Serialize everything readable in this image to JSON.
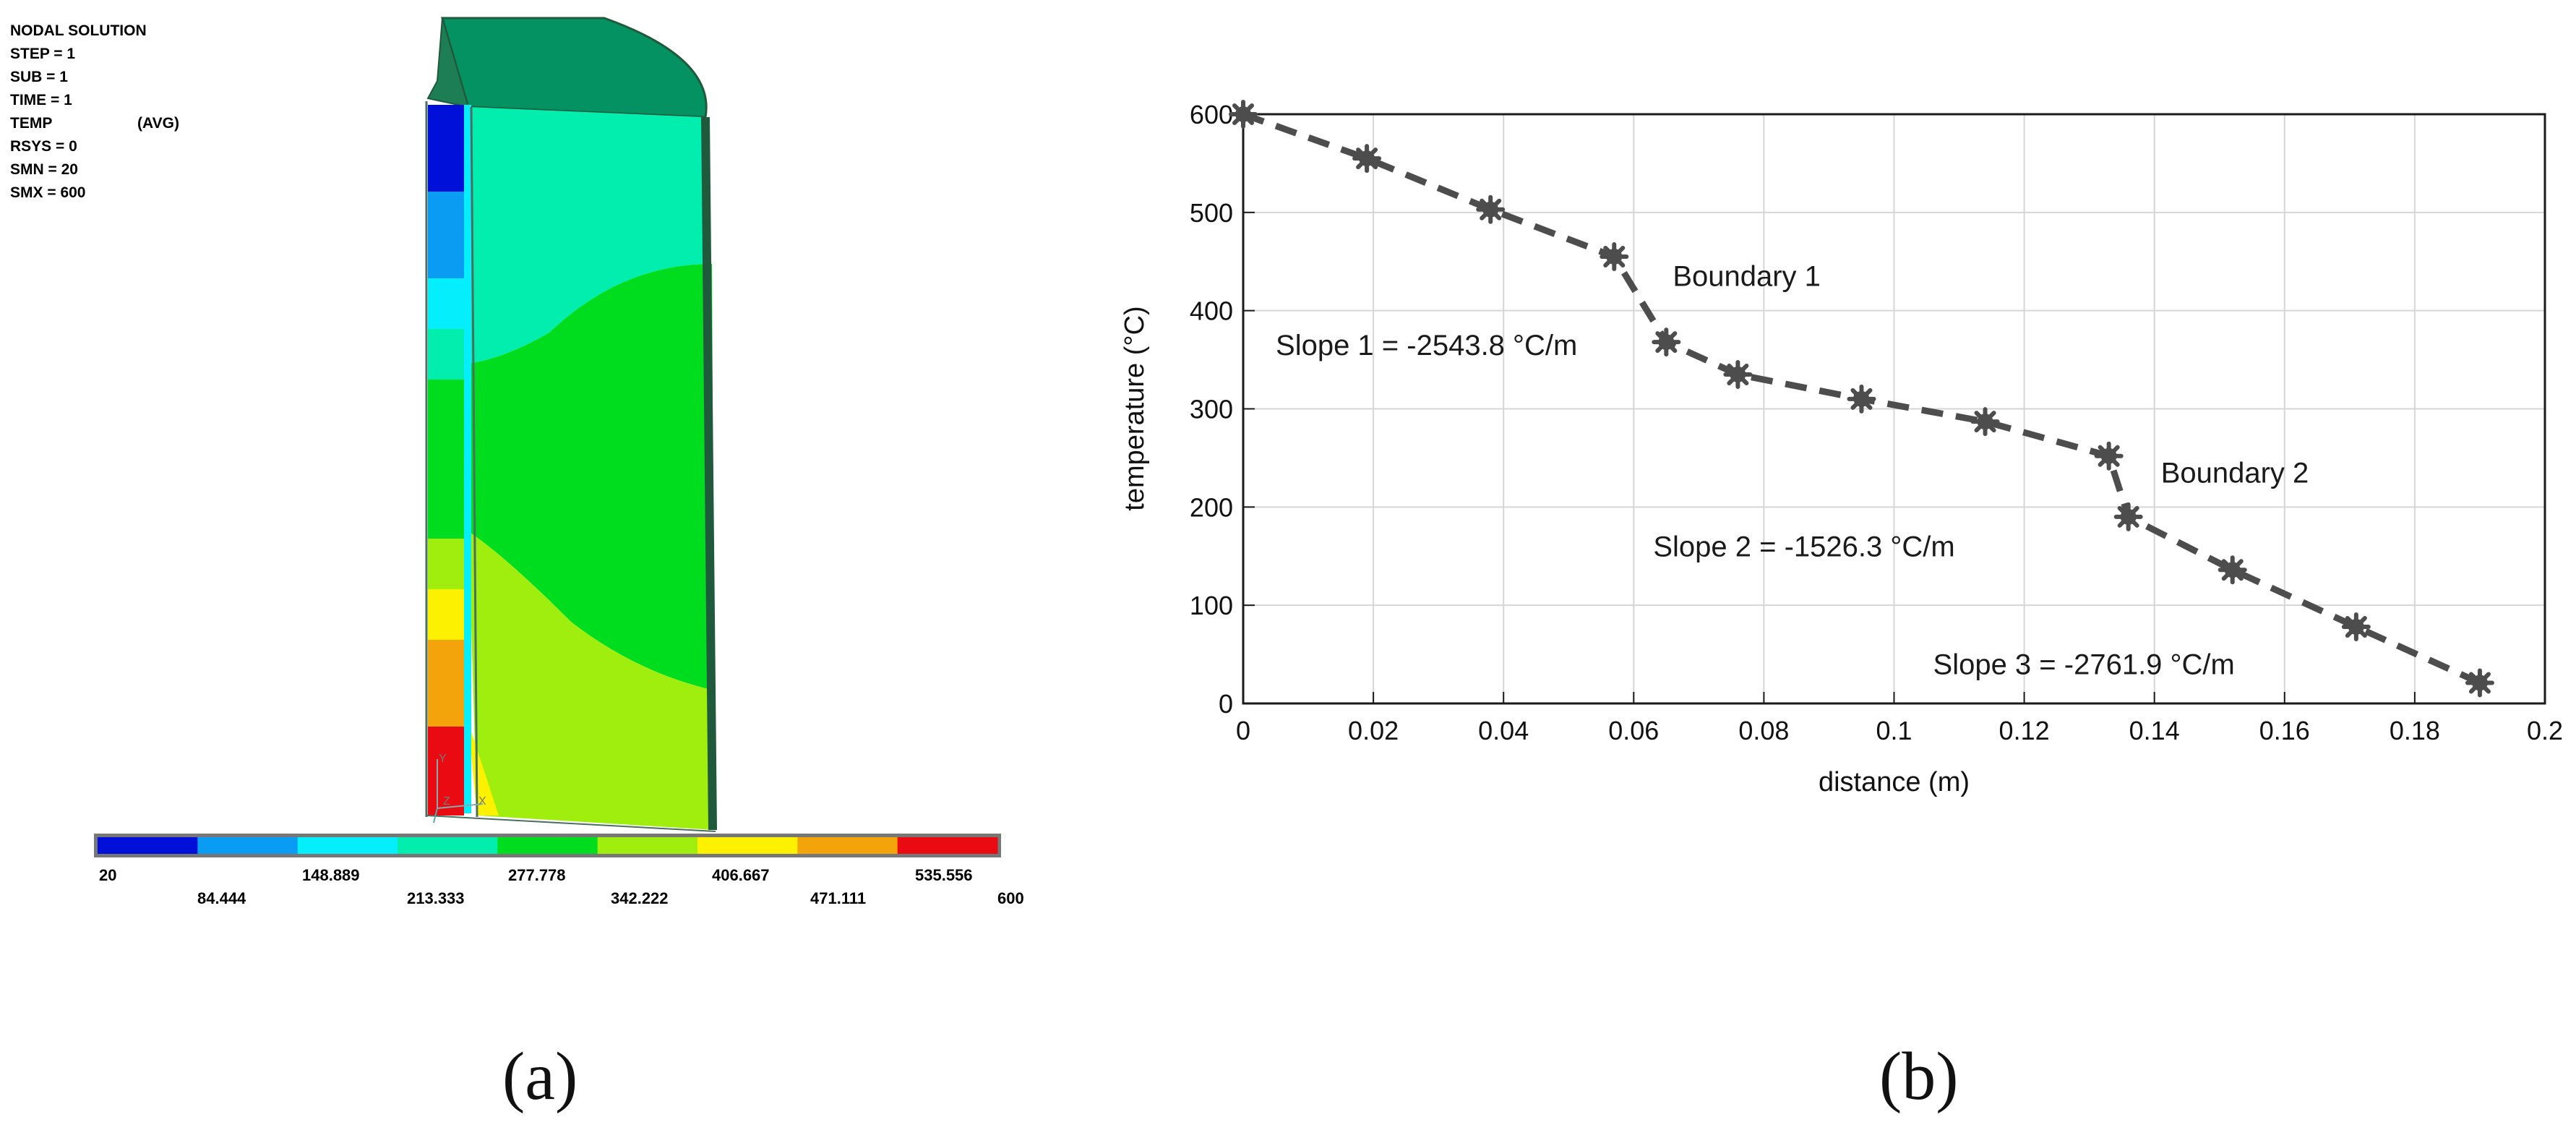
{
  "panel_a": {
    "header_lines": [
      "NODAL SOLUTION",
      "STEP = 1",
      "SUB  = 1",
      "TIME = 1",
      "TEMP",
      "RSYS = 0",
      "SMN  = 20",
      "SMX  = 600"
    ],
    "header_avg": "(AVG)",
    "colorbar": {
      "colors": [
        "#0010d8",
        "#0a9cf2",
        "#05eefc",
        "#02eeae",
        "#00dd1e",
        "#a0ee0e",
        "#fcf200",
        "#f2a40a",
        "#ea0a12"
      ],
      "labels_top": [
        "20",
        "148.889",
        "277.778",
        "406.667",
        "535.556"
      ],
      "labels_bottom": [
        "84.444",
        "213.333",
        "342.222",
        "471.111",
        "600"
      ]
    },
    "model_colors": {
      "cap": "#059262",
      "edge": "#1f5a3c",
      "cyan": "#02eeae",
      "green": "#00dd1e",
      "yellowgreen": "#a0ee0e"
    },
    "triad_labels": [
      "Y",
      "Z",
      "X"
    ],
    "label": "(a)"
  },
  "chart_data": {
    "type": "line",
    "series_style": "dashed line with asterisk markers",
    "series_color": "#4d4d4d",
    "x": [
      0,
      0.019,
      0.038,
      0.057,
      0.065,
      0.076,
      0.095,
      0.114,
      0.133,
      0.136,
      0.152,
      0.171,
      0.19
    ],
    "y": [
      600,
      555,
      503,
      455,
      368,
      335,
      310,
      287,
      252,
      190,
      136,
      78,
      21
    ],
    "xlabel": "distance (m)",
    "ylabel": "temperature (°C)",
    "xlim": [
      0,
      0.2
    ],
    "ylim": [
      0,
      600
    ],
    "xticks": [
      "0",
      "0.02",
      "0.04",
      "0.06",
      "0.08",
      "0.1",
      "0.12",
      "0.14",
      "0.16",
      "0.18",
      "0.2"
    ],
    "yticks": [
      "0",
      "100",
      "200",
      "300",
      "400",
      "500",
      "600"
    ],
    "grid": true,
    "annotations": [
      {
        "text": "Boundary 1",
        "x": 0.066,
        "y": 425
      },
      {
        "text": "Slope 1 = -2543.8 °C/m",
        "x": 0.005,
        "y": 355
      },
      {
        "text": "Boundary 2",
        "x": 0.141,
        "y": 225
      },
      {
        "text": "Slope 2 = -1526.3 °C/m",
        "x": 0.063,
        "y": 150
      },
      {
        "text": "Slope 3 = -2761.9 °C/m",
        "x": 0.106,
        "y": 30
      }
    ],
    "label": "(b)"
  }
}
